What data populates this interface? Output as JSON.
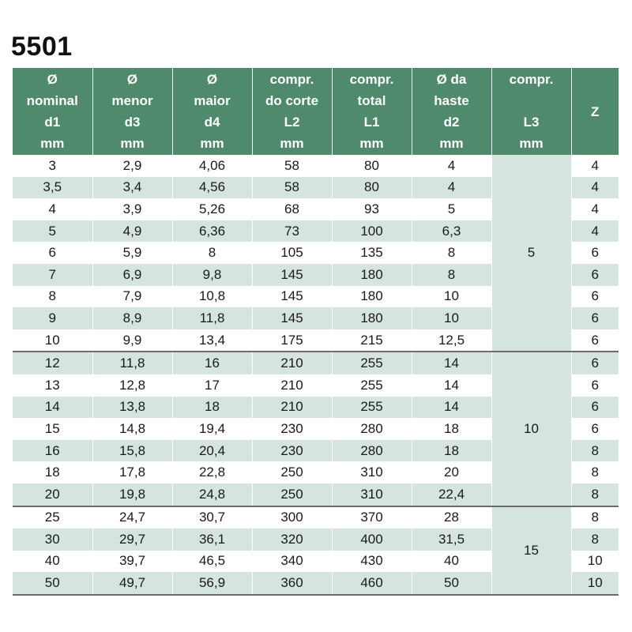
{
  "title": "5501",
  "headers": [
    [
      "Ø",
      "nominal",
      "d1",
      "mm"
    ],
    [
      "Ø",
      "menor",
      "d3",
      "mm"
    ],
    [
      "Ø",
      "maior",
      "d4",
      "mm"
    ],
    [
      "compr.",
      "do corte",
      "L2",
      "mm"
    ],
    [
      "compr.",
      "total",
      "L1",
      "mm"
    ],
    [
      "Ø da",
      "haste",
      "d2",
      "mm"
    ],
    [
      "compr.",
      "",
      "L3",
      "mm"
    ],
    [
      "Z"
    ]
  ],
  "groups": [
    {
      "l3": "5",
      "rows": [
        [
          "3",
          "2,9",
          "4,06",
          "58",
          "80",
          "4",
          "4"
        ],
        [
          "3,5",
          "3,4",
          "4,56",
          "58",
          "80",
          "4",
          "4"
        ],
        [
          "4",
          "3,9",
          "5,26",
          "68",
          "93",
          "5",
          "4"
        ],
        [
          "5",
          "4,9",
          "6,36",
          "73",
          "100",
          "6,3",
          "4"
        ],
        [
          "6",
          "5,9",
          "8",
          "105",
          "135",
          "8",
          "6"
        ],
        [
          "7",
          "6,9",
          "9,8",
          "145",
          "180",
          "8",
          "6"
        ],
        [
          "8",
          "7,9",
          "10,8",
          "145",
          "180",
          "10",
          "6"
        ],
        [
          "9",
          "8,9",
          "11,8",
          "145",
          "180",
          "10",
          "6"
        ],
        [
          "10",
          "9,9",
          "13,4",
          "175",
          "215",
          "12,5",
          "6"
        ]
      ]
    },
    {
      "l3": "10",
      "rows": [
        [
          "12",
          "11,8",
          "16",
          "210",
          "255",
          "14",
          "6"
        ],
        [
          "13",
          "12,8",
          "17",
          "210",
          "255",
          "14",
          "6"
        ],
        [
          "14",
          "13,8",
          "18",
          "210",
          "255",
          "14",
          "6"
        ],
        [
          "15",
          "14,8",
          "19,4",
          "230",
          "280",
          "18",
          "6"
        ],
        [
          "16",
          "15,8",
          "20,4",
          "230",
          "280",
          "18",
          "8"
        ],
        [
          "18",
          "17,8",
          "22,8",
          "250",
          "310",
          "20",
          "8"
        ],
        [
          "20",
          "19,8",
          "24,8",
          "250",
          "310",
          "22,4",
          "8"
        ]
      ]
    },
    {
      "l3": "15",
      "rows": [
        [
          "25",
          "24,7",
          "30,7",
          "300",
          "370",
          "28",
          "8"
        ],
        [
          "30",
          "29,7",
          "36,1",
          "320",
          "400",
          "31,5",
          "8"
        ],
        [
          "40",
          "39,7",
          "46,5",
          "340",
          "430",
          "40",
          "10"
        ],
        [
          "50",
          "49,7",
          "56,9",
          "360",
          "460",
          "50",
          "10"
        ]
      ]
    }
  ],
  "colors": {
    "header_bg": "#4f8a6c",
    "stripe": "#d5e4dc",
    "group_rule": "#6c6c6c"
  }
}
